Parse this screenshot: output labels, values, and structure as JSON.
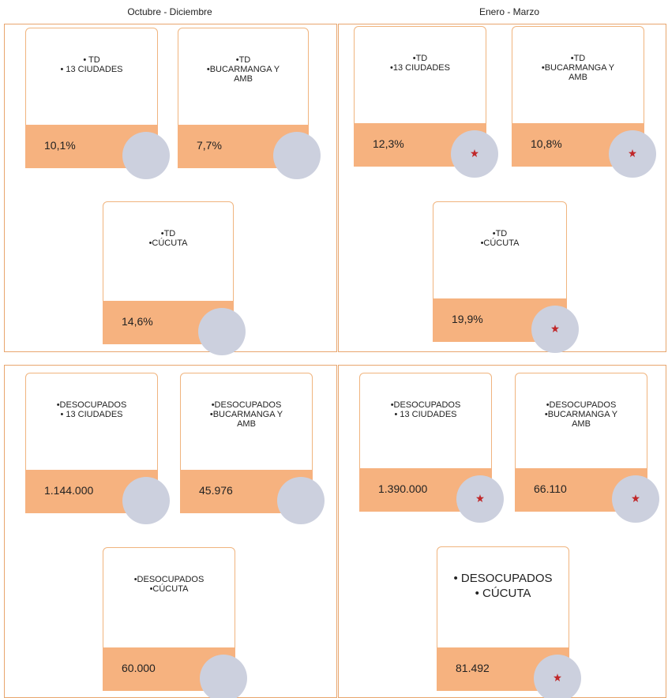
{
  "headers": [
    "Octubre  - Diciembre",
    "Enero  - Marzo"
  ],
  "panels": [
    {
      "star": false,
      "cards": [
        {
          "lines": [
            "• TD",
            "• 13 CIUDADES"
          ],
          "value": "10,1%"
        },
        {
          "lines": [
            "•TD",
            "•BUCARMANGA  Y",
            "AMB"
          ],
          "value": "7,7%"
        },
        {
          "lines": [
            "•TD",
            "•CÚCUTA"
          ],
          "value": "14,6%"
        }
      ]
    },
    {
      "star": true,
      "cards": [
        {
          "lines": [
            "•TD",
            "•13 CIUDADES"
          ],
          "value": "12,3%"
        },
        {
          "lines": [
            "•TD",
            "•BUCARMANGA Y",
            "AMB"
          ],
          "value": "10,8%"
        },
        {
          "lines": [
            "•TD",
            "•CÚCUTA"
          ],
          "value": "19,9%"
        }
      ]
    },
    {
      "star": false,
      "cards": [
        {
          "lines": [
            "•DESOCUPADOS",
            "• 13 CIUDADES"
          ],
          "value": "1.144.000"
        },
        {
          "lines": [
            "•DESOCUPADOS",
            "•BUCARMANGA  Y",
            "AMB"
          ],
          "value": "45.976"
        },
        {
          "lines": [
            "•DESOCUPADOS",
            "•CÚCUTA"
          ],
          "value": "60.000"
        }
      ]
    },
    {
      "star": true,
      "cards": [
        {
          "lines": [
            "•DESOCUPADOS",
            "• 13 CIUDADES"
          ],
          "value": "1.390.000"
        },
        {
          "lines": [
            "•DESOCUPADOS",
            "•BUCARMANGA Y",
            "AMB"
          ],
          "value": "66.110"
        },
        {
          "lines": [
            "• DESOCUPADOS",
            "• CÚCUTA"
          ],
          "value": "81.492"
        }
      ]
    }
  ]
}
